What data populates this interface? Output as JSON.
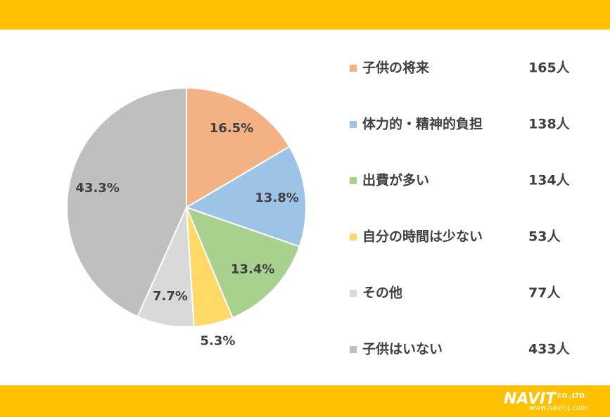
{
  "chart_data": {
    "type": "pie",
    "categories": [
      "子供の将来",
      "体力的・精神的負担",
      "出費が多い",
      "自分の時間は少ない",
      "その他",
      "子供はいない"
    ],
    "values": [
      16.5,
      13.8,
      13.4,
      5.3,
      7.7,
      43.3
    ],
    "value_labels": [
      "16.5%",
      "13.8%",
      "13.4%",
      "5.3%",
      "7.7%",
      "43.3%"
    ],
    "counts": [
      165,
      138,
      134,
      53,
      77,
      433
    ],
    "count_labels": [
      "165人",
      "138人",
      "134人",
      "53人",
      "77人",
      "433人"
    ],
    "colors": [
      "#F4B183",
      "#9DC3E6",
      "#A9D18E",
      "#FFD966",
      "#D9D9D9",
      "#BFBFBF"
    ],
    "legend": "right"
  },
  "footer": {
    "brand": "NAVIT",
    "company": "CO.,LTD.",
    "url": "www.navit-j.com"
  }
}
